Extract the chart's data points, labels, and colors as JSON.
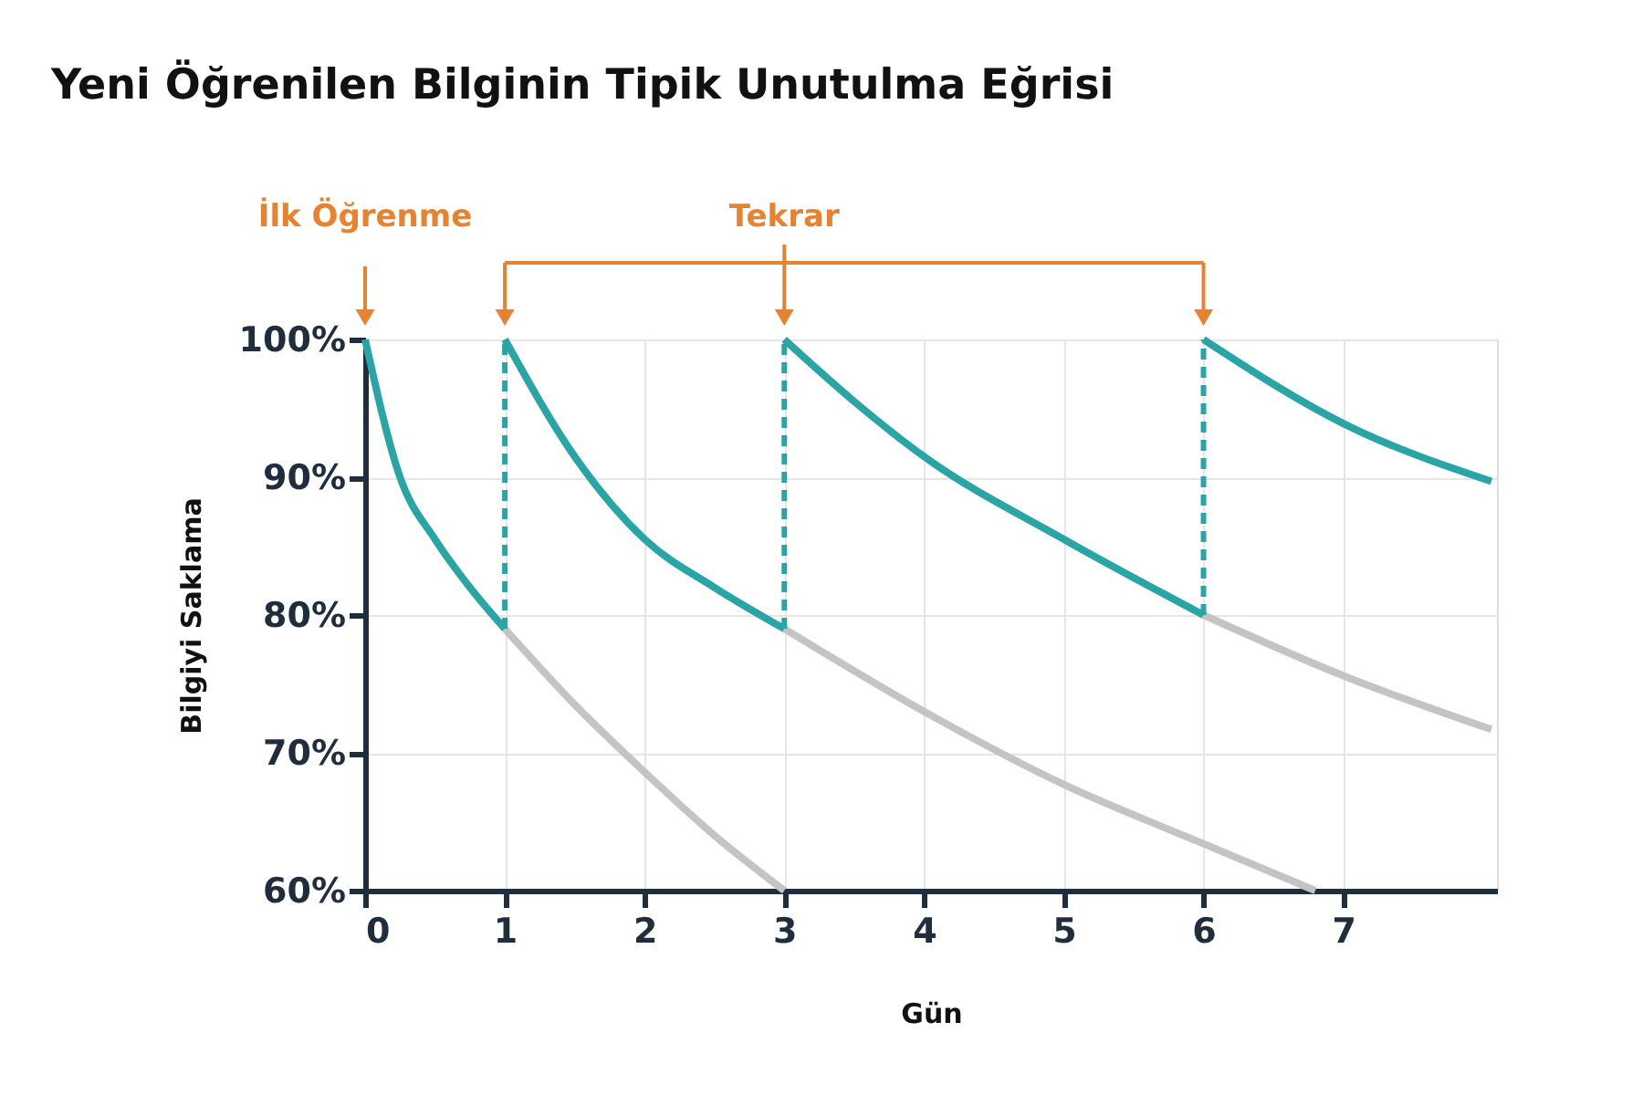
{
  "chart_data": {
    "type": "line",
    "title": "Yeni Öğrenilen Bilginin Tipik Unutulma Eğrisi",
    "xlabel": "Gün",
    "ylabel": "Bilgiyi Saklama",
    "xlim": [
      0,
      8.1
    ],
    "xticks": [
      0,
      1,
      2,
      3,
      4,
      5,
      6,
      7
    ],
    "ylim": [
      60,
      100
    ],
    "yticks": [
      {
        "value": 60,
        "label": "60%"
      },
      {
        "value": 70,
        "label": "70%"
      },
      {
        "value": 80,
        "label": "80%"
      },
      {
        "value": 90,
        "label": "90%"
      },
      {
        "value": 100,
        "label": "100%"
      }
    ],
    "grid": true,
    "marker": "none",
    "series": [
      {
        "color": "#c4c4c4",
        "line_style": "solid",
        "x": [
          1,
          1.5,
          2,
          2.5,
          3
        ],
        "values": [
          79,
          73.5,
          68.6,
          64,
          60
        ]
      },
      {
        "color": "#c4c4c4",
        "line_style": "solid",
        "x": [
          3,
          4,
          5,
          6,
          6.8
        ],
        "values": [
          79,
          73,
          67.7,
          63.4,
          60
        ]
      },
      {
        "color": "#c4c4c4",
        "line_style": "solid",
        "x": [
          6,
          7,
          8.06
        ],
        "values": [
          80,
          75.6,
          71.7
        ]
      },
      {
        "color": "#2aa5a5",
        "line_style": "solid",
        "x": [
          0,
          0.25,
          0.5,
          0.75,
          1
        ],
        "values": [
          100,
          90,
          85.5,
          82,
          79
        ]
      },
      {
        "color": "#2aa5a5",
        "line_style": "solid",
        "x": [
          1,
          1.5,
          2,
          2.5,
          3
        ],
        "values": [
          100,
          91.5,
          85.5,
          82,
          79
        ]
      },
      {
        "color": "#2aa5a5",
        "line_style": "solid",
        "x": [
          3,
          3.5,
          4,
          5,
          6
        ],
        "values": [
          100,
          95.5,
          91.5,
          85.5,
          80
        ]
      },
      {
        "color": "#2aa5a5",
        "line_style": "solid",
        "x": [
          6,
          7,
          8.06
        ],
        "values": [
          100,
          93.9,
          89.7
        ]
      },
      {
        "color": "#2aa5a5",
        "line_style": "dashed",
        "x": [
          1,
          1
        ],
        "values": [
          79,
          100
        ]
      },
      {
        "color": "#2aa5a5",
        "line_style": "dashed",
        "x": [
          3,
          3
        ],
        "values": [
          79,
          100
        ]
      },
      {
        "color": "#2aa5a5",
        "line_style": "dashed",
        "x": [
          6,
          6
        ],
        "values": [
          80,
          100
        ]
      }
    ],
    "annotations": [
      "İlk Öğrenme",
      "Tekrar"
    ]
  }
}
